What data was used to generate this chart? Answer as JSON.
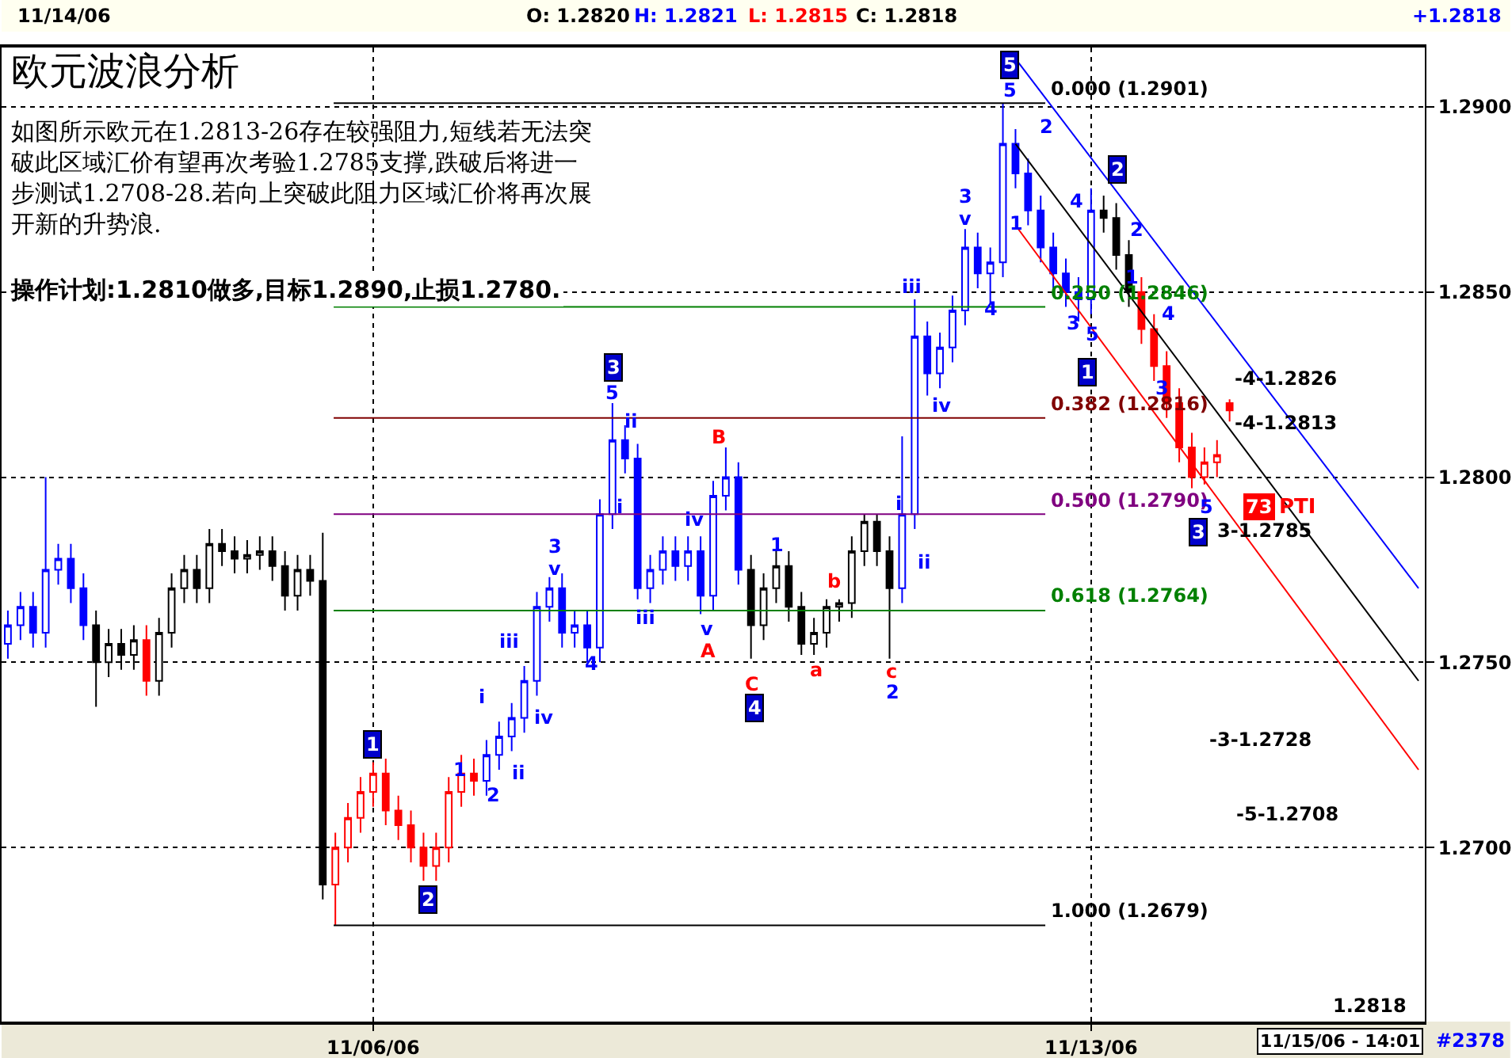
{
  "chart_data": {
    "type": "candlestick",
    "title": "欧元波浪分析",
    "categories": [
      null,
      null,
      null,
      null,
      null,
      null,
      null,
      null,
      null,
      null,
      null,
      null,
      null,
      null,
      null,
      null,
      null,
      null,
      null,
      null,
      null,
      null,
      null,
      null,
      null,
      null,
      null,
      null,
      null,
      "11/06/06",
      null,
      null,
      null,
      null,
      null,
      null,
      null,
      null,
      null,
      null,
      null,
      null,
      null,
      null,
      null,
      null,
      null,
      null,
      null,
      null,
      null,
      null,
      null,
      null,
      null,
      null,
      null,
      null,
      null,
      null,
      null,
      null,
      null,
      null,
      null,
      null,
      null,
      null,
      null,
      null,
      null,
      null,
      null,
      null,
      null,
      null,
      null,
      null,
      null,
      null,
      null,
      null,
      null,
      null,
      null,
      null,
      "11/13/06",
      null,
      null,
      null,
      null,
      null,
      null,
      null,
      null,
      null,
      null,
      null,
      null,
      null,
      null,
      null,
      null,
      null,
      null,
      null,
      null,
      null,
      null,
      null,
      null,
      null,
      null
    ],
    "ohlc": [
      [
        1.2755,
        1.2764,
        1.2751,
        1.276
      ],
      [
        1.276,
        1.2769,
        1.2756,
        1.2765
      ],
      [
        1.2765,
        1.2769,
        1.2754,
        1.2758
      ],
      [
        1.2758,
        1.28,
        1.2754,
        1.2775
      ],
      [
        1.2775,
        1.2782,
        1.2771,
        1.2778
      ],
      [
        1.2778,
        1.2782,
        1.2766,
        1.277
      ],
      [
        1.277,
        1.2774,
        1.2756,
        1.276
      ],
      [
        1.276,
        1.2764,
        1.2738,
        1.275
      ],
      [
        1.275,
        1.2759,
        1.2746,
        1.2755
      ],
      [
        1.2755,
        1.2759,
        1.2748,
        1.2752
      ],
      [
        1.2752,
        1.276,
        1.2748,
        1.2756
      ],
      [
        1.2756,
        1.276,
        1.2741,
        1.2745
      ],
      [
        1.2745,
        1.2762,
        1.2741,
        1.2758
      ],
      [
        1.2758,
        1.2774,
        1.2754,
        1.277
      ],
      [
        1.277,
        1.2779,
        1.2766,
        1.2775
      ],
      [
        1.2775,
        1.2779,
        1.2766,
        1.277
      ],
      [
        1.277,
        1.2786,
        1.2766,
        1.2782
      ],
      [
        1.2782,
        1.2786,
        1.2776,
        1.278
      ],
      [
        1.278,
        1.2784,
        1.2774,
        1.2778
      ],
      [
        1.2778,
        1.2783,
        1.2774,
        1.2779
      ],
      [
        1.2779,
        1.2784,
        1.2775,
        1.278
      ],
      [
        1.278,
        1.2784,
        1.2772,
        1.2776
      ],
      [
        1.2776,
        1.278,
        1.2764,
        1.2768
      ],
      [
        1.2768,
        1.2779,
        1.2764,
        1.2775
      ],
      [
        1.2775,
        1.2779,
        1.2768,
        1.2772
      ],
      [
        1.2772,
        1.2785,
        1.2686,
        1.269
      ],
      [
        1.269,
        1.2704,
        1.2679,
        1.27
      ],
      [
        1.27,
        1.2712,
        1.2696,
        1.2708
      ],
      [
        1.2708,
        1.2719,
        1.2704,
        1.2715
      ],
      [
        1.2715,
        1.2723,
        1.2711,
        1.272
      ],
      [
        1.272,
        1.2724,
        1.2706,
        1.271
      ],
      [
        1.271,
        1.2714,
        1.2702,
        1.2706
      ],
      [
        1.2706,
        1.271,
        1.2696,
        1.27
      ],
      [
        1.27,
        1.2704,
        1.2691,
        1.2695
      ],
      [
        1.2695,
        1.2704,
        1.2691,
        1.27
      ],
      [
        1.27,
        1.2719,
        1.2696,
        1.2715
      ],
      [
        1.2715,
        1.2725,
        1.2711,
        1.272
      ],
      [
        1.272,
        1.2724,
        1.2714,
        1.2718
      ],
      [
        1.2718,
        1.2729,
        1.2714,
        1.2725
      ],
      [
        1.2725,
        1.2734,
        1.2721,
        1.273
      ],
      [
        1.273,
        1.2739,
        1.2726,
        1.2735
      ],
      [
        1.2735,
        1.2749,
        1.2731,
        1.2745
      ],
      [
        1.2745,
        1.2769,
        1.2741,
        1.2765
      ],
      [
        1.2765,
        1.2773,
        1.2761,
        1.277
      ],
      [
        1.277,
        1.2774,
        1.2754,
        1.2758
      ],
      [
        1.2758,
        1.2764,
        1.2754,
        1.276
      ],
      [
        1.276,
        1.2764,
        1.275,
        1.2754
      ],
      [
        1.2754,
        1.2794,
        1.275,
        1.279
      ],
      [
        1.279,
        1.282,
        1.2786,
        1.281
      ],
      [
        1.281,
        1.2814,
        1.2801,
        1.2805
      ],
      [
        1.2805,
        1.2809,
        1.2767,
        1.277
      ],
      [
        1.277,
        1.2779,
        1.2766,
        1.2775
      ],
      [
        1.2775,
        1.2784,
        1.2771,
        1.278
      ],
      [
        1.278,
        1.2784,
        1.2772,
        1.2776
      ],
      [
        1.2776,
        1.2784,
        1.2772,
        1.278
      ],
      [
        1.278,
        1.2784,
        1.2763,
        1.2768
      ],
      [
        1.2768,
        1.2799,
        1.2764,
        1.2795
      ],
      [
        1.2795,
        1.2808,
        1.2791,
        1.28
      ],
      [
        1.28,
        1.2804,
        1.2771,
        1.2775
      ],
      [
        1.2775,
        1.2779,
        1.2751,
        1.276
      ],
      [
        1.276,
        1.2774,
        1.2756,
        1.277
      ],
      [
        1.277,
        1.278,
        1.2766,
        1.2776
      ],
      [
        1.2776,
        1.278,
        1.2761,
        1.2765
      ],
      [
        1.2765,
        1.2769,
        1.2752,
        1.2755
      ],
      [
        1.2755,
        1.2762,
        1.2752,
        1.2758
      ],
      [
        1.2758,
        1.2767,
        1.2754,
        1.2765
      ],
      [
        1.2765,
        1.2767,
        1.2761,
        1.2766
      ],
      [
        1.2766,
        1.2784,
        1.2762,
        1.278
      ],
      [
        1.278,
        1.279,
        1.2776,
        1.2788
      ],
      [
        1.2788,
        1.279,
        1.2776,
        1.278
      ],
      [
        1.278,
        1.2784,
        1.2751,
        1.277
      ],
      [
        1.277,
        1.2811,
        1.2766,
        1.279
      ],
      [
        1.279,
        1.2848,
        1.2786,
        1.2838
      ],
      [
        1.2838,
        1.2842,
        1.2822,
        1.2828
      ],
      [
        1.2828,
        1.2839,
        1.2824,
        1.2835
      ],
      [
        1.2835,
        1.2849,
        1.2831,
        1.2845
      ],
      [
        1.2845,
        1.2867,
        1.2841,
        1.2862
      ],
      [
        1.2862,
        1.2866,
        1.2851,
        1.2855
      ],
      [
        1.2855,
        1.2862,
        1.2847,
        1.2858
      ],
      [
        1.2858,
        1.2901,
        1.2854,
        1.289
      ],
      [
        1.289,
        1.2894,
        1.2878,
        1.2882
      ],
      [
        1.2882,
        1.2886,
        1.2868,
        1.2872
      ],
      [
        1.2872,
        1.2876,
        1.2858,
        1.2862
      ],
      [
        1.2862,
        1.2866,
        1.2851,
        1.2855
      ],
      [
        1.2855,
        1.2859,
        1.2846,
        1.285
      ],
      [
        1.285,
        1.2854,
        1.2842,
        1.2848
      ],
      [
        1.2848,
        1.2878,
        1.2844,
        1.2872
      ],
      [
        1.2872,
        1.2876,
        1.2866,
        1.287
      ],
      [
        1.287,
        1.2874,
        1.2856,
        1.286
      ],
      [
        1.286,
        1.2864,
        1.2846,
        1.285
      ],
      [
        1.285,
        1.2854,
        1.2836,
        1.284
      ],
      [
        1.284,
        1.2844,
        1.2826,
        1.283
      ],
      [
        1.283,
        1.2834,
        1.2816,
        1.282
      ],
      [
        1.282,
        1.2824,
        1.2804,
        1.2808
      ],
      [
        1.2808,
        1.2812,
        1.2797,
        1.28
      ],
      [
        1.28,
        1.2808,
        1.2798,
        1.2804
      ],
      [
        1.2804,
        1.281,
        1.28,
        1.2806
      ],
      [
        1.282,
        1.2821,
        1.2815,
        1.2818
      ],
      null,
      null,
      null,
      null,
      null,
      null,
      null,
      null,
      null,
      null,
      null,
      null,
      null,
      null,
      null
    ],
    "colors": [
      "#0000ff",
      "#0000ff",
      "#0000ff",
      "#0000ff",
      "#0000ff",
      "#0000ff",
      "#0000ff",
      "#000000",
      "#000000",
      "#000000",
      "#000000",
      "#ff0000",
      "#000000",
      "#000000",
      "#000000",
      "#000000",
      "#000000",
      "#000000",
      "#000000",
      "#000000",
      "#000000",
      "#000000",
      "#000000",
      "#000000",
      "#000000",
      "#000000",
      "#ff0000",
      "#ff0000",
      "#ff0000",
      "#ff0000",
      "#ff0000",
      "#ff0000",
      "#ff0000",
      "#ff0000",
      "#ff0000",
      "#ff0000",
      "#ff0000",
      "#ff0000",
      "#0000ff",
      "#0000ff",
      "#0000ff",
      "#0000ff",
      "#0000ff",
      "#0000ff",
      "#0000ff",
      "#0000ff",
      "#0000ff",
      "#0000ff",
      "#0000ff",
      "#0000ff",
      "#0000ff",
      "#0000ff",
      "#0000ff",
      "#0000ff",
      "#0000ff",
      "#0000ff",
      "#0000ff",
      "#0000ff",
      "#0000ff",
      "#000000",
      "#000000",
      "#000000",
      "#000000",
      "#000000",
      "#000000",
      "#000000",
      "#000000",
      "#000000",
      "#000000",
      "#000000",
      "#000000",
      "#0000ff",
      "#0000ff",
      "#0000ff",
      "#0000ff",
      "#0000ff",
      "#0000ff",
      "#0000ff",
      "#0000ff",
      "#0000ff",
      "#0000ff",
      "#0000ff",
      "#0000ff",
      "#0000ff",
      "#0000ff",
      "#0000ff",
      "#0000ff",
      "#000000",
      "#000000",
      "#000000",
      "#ff0000",
      "#ff0000",
      "#ff0000",
      "#ff0000",
      "#ff0000",
      "#ff0000",
      "#ff0000",
      "#ff0000",
      null,
      null,
      null,
      null,
      null,
      null,
      null,
      null,
      null,
      null,
      null,
      null,
      null,
      null,
      null
    ],
    "series": [
      {
        "type": "line",
        "color": "#0000ff",
        "values": [
          null,
          null,
          null,
          null,
          null,
          null,
          null,
          null,
          null,
          null,
          null,
          null,
          null,
          null,
          null,
          null,
          null,
          null,
          null,
          null,
          null,
          null,
          null,
          null,
          null,
          null,
          null,
          null,
          null,
          null,
          null,
          null,
          null,
          null,
          null,
          null,
          null,
          null,
          null,
          null,
          null,
          null,
          null,
          null,
          null,
          null,
          null,
          null,
          null,
          null,
          null,
          null,
          null,
          null,
          null,
          null,
          null,
          null,
          null,
          null,
          null,
          null,
          null,
          null,
          null,
          null,
          null,
          null,
          null,
          null,
          null,
          null,
          null,
          null,
          null,
          null,
          null,
          null,
          null,
          null,
          1.2913,
          null,
          null,
          null,
          null,
          null,
          null,
          null,
          null,
          null,
          null,
          null,
          null,
          null,
          null,
          null,
          null,
          null,
          null,
          null,
          null,
          null,
          null,
          null,
          null,
          null,
          null,
          null,
          null,
          null,
          null,
          null,
          1.277
        ]
      },
      {
        "type": "line",
        "color": "#000000",
        "values": [
          null,
          null,
          null,
          null,
          null,
          null,
          null,
          null,
          null,
          null,
          null,
          null,
          null,
          null,
          null,
          null,
          null,
          null,
          null,
          null,
          null,
          null,
          null,
          null,
          null,
          null,
          null,
          null,
          null,
          null,
          null,
          null,
          null,
          null,
          null,
          null,
          null,
          null,
          null,
          null,
          null,
          null,
          null,
          null,
          null,
          null,
          null,
          null,
          null,
          null,
          null,
          null,
          null,
          null,
          null,
          null,
          null,
          null,
          null,
          null,
          null,
          null,
          null,
          null,
          null,
          null,
          null,
          null,
          null,
          null,
          null,
          null,
          null,
          null,
          null,
          null,
          null,
          null,
          null,
          null,
          1.289,
          null,
          null,
          null,
          null,
          null,
          null,
          null,
          null,
          null,
          null,
          null,
          null,
          null,
          null,
          null,
          null,
          null,
          null,
          null,
          null,
          null,
          null,
          null,
          null,
          null,
          null,
          null,
          null,
          null,
          null,
          null,
          1.2745
        ]
      },
      {
        "type": "line",
        "color": "#ff0000",
        "values": [
          null,
          null,
          null,
          null,
          null,
          null,
          null,
          null,
          null,
          null,
          null,
          null,
          null,
          null,
          null,
          null,
          null,
          null,
          null,
          null,
          null,
          null,
          null,
          null,
          null,
          null,
          null,
          null,
          null,
          null,
          null,
          null,
          null,
          null,
          null,
          null,
          null,
          null,
          null,
          null,
          null,
          null,
          null,
          null,
          null,
          null,
          null,
          null,
          null,
          null,
          null,
          null,
          null,
          null,
          null,
          null,
          null,
          null,
          null,
          null,
          null,
          null,
          null,
          null,
          null,
          null,
          null,
          null,
          null,
          null,
          null,
          null,
          null,
          null,
          null,
          null,
          null,
          null,
          null,
          null,
          1.2868,
          null,
          null,
          null,
          null,
          null,
          null,
          null,
          null,
          null,
          null,
          null,
          null,
          null,
          null,
          null,
          null,
          null,
          null,
          null,
          null,
          null,
          null,
          null,
          null,
          null,
          null,
          null,
          null,
          null,
          null,
          null,
          1.2721
        ]
      }
    ],
    "ylim": [
      1.2653,
      1.2916
    ],
    "yticks": [
      {
        "value": 1.27,
        "label": "1.2700"
      },
      {
        "value": 1.275,
        "label": "1.2750"
      },
      {
        "value": 1.28,
        "label": "1.2800"
      },
      {
        "value": 1.285,
        "label": "1.2850"
      },
      {
        "value": 1.29,
        "label": "1.2900"
      }
    ],
    "grid": true,
    "ref_lines": [
      {
        "axis": "y",
        "value": 1.2901,
        "label": "0.000 (1.2901)",
        "color": "#000000"
      },
      {
        "axis": "y",
        "value": 1.2846,
        "label": "0.250 (1.2846)",
        "color": "#008000"
      },
      {
        "axis": "y",
        "value": 1.2816,
        "label": "0.382 (1.2816)",
        "color": "#800000"
      },
      {
        "axis": "y",
        "value": 1.279,
        "label": "0.500 (1.2790)",
        "color": "#800080"
      },
      {
        "axis": "y",
        "value": 1.2764,
        "label": "0.618 (1.2764)",
        "color": "#008000"
      },
      {
        "axis": "y",
        "value": 1.2679,
        "label": "1.000 (1.2679)",
        "color": "#000000"
      }
    ],
    "annotations": [
      "11/14/06",
      "O: 1.2820",
      "H: 1.2821",
      "L: 1.2815",
      "C: 1.2818",
      "+1.2818",
      "如图所示欧元在1.2813-26存在较强阻力,短线若无法突破此区域汇价有望再次考验1.2785支撑,跌破后将进一步测试1.2708-28.若向上突破此阻力区域汇价将再次展开新的升势浪.",
      "操作计划:1.2810做多,目标1.2890,止损1.2780.",
      "11/15/06 - 14:01",
      "#2378",
      "1.2818",
      "5",
      "3",
      "1",
      "2",
      "4",
      "2",
      "1",
      "3",
      "1",
      "2",
      "i",
      "ii",
      "iii",
      "iv",
      "3",
      "v",
      "4",
      "5",
      "ii",
      "i",
      "iii",
      "iv",
      "v",
      "1",
      "iii",
      "iv",
      "i",
      "ii",
      "2",
      "3",
      "v",
      "4",
      "5",
      "2",
      "1",
      "4",
      "2",
      "1",
      "4",
      "3",
      "5",
      "3",
      "5",
      "B",
      "A",
      "C",
      "a",
      "b",
      "c",
      "-4-1.2826",
      "-4-1.2813",
      "3-1.2785",
      "-3-1.2728",
      "-5-1.2708",
      "73",
      "PTI"
    ]
  }
}
